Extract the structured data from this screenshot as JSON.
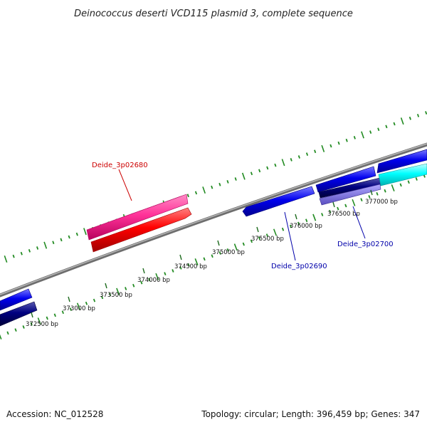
{
  "title": "Deinococcus deserti VCD115 plasmid 3, complete sequence",
  "footer": {
    "accession": "Accession: NC_012528",
    "summary": "Topology: circular; Length: 396,459 bp; Genes: 347"
  },
  "ticks": [
    "372500 bp",
    "373000 bp",
    "373500 bp",
    "374000 bp",
    "374500 bp",
    "375000 bp",
    "375500 bp",
    "376000 bp",
    "376500 bp",
    "377000 bp"
  ],
  "gene_labels": [
    {
      "text": "Deide_3p02680",
      "color": "#cc0000"
    },
    {
      "text": "Deide_3p02690",
      "color": "#0000aa"
    },
    {
      "text": "Deide_3p02700",
      "color": "#0000aa"
    }
  ],
  "colors": {
    "backbone": "#888888",
    "forward_cds": "#0000ee",
    "reverse_cds": "#000080",
    "highlight_gene": "#ff3399",
    "highlight_cds": "#ff0000",
    "rna": "#00ffff",
    "minor_tick": "#228b22"
  }
}
